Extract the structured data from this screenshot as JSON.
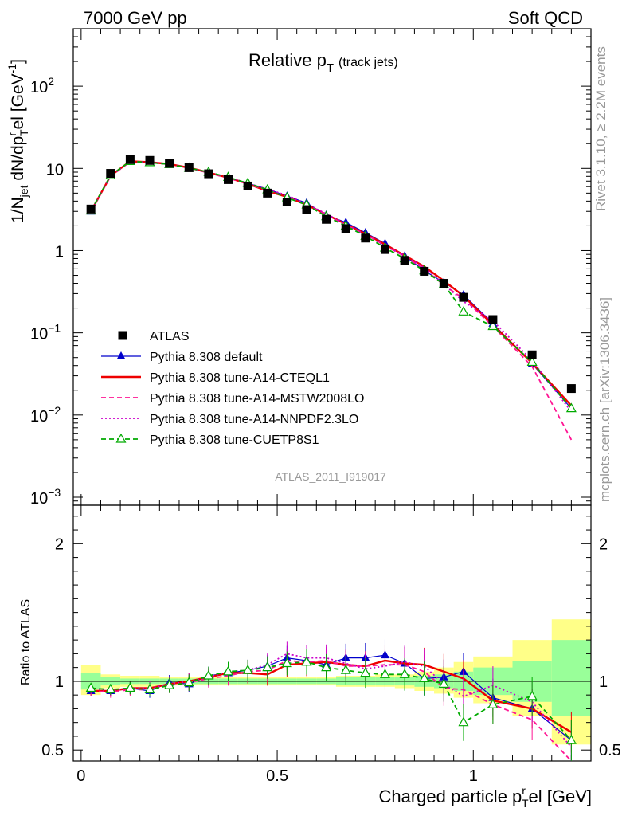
{
  "header": {
    "left": "7000 GeV pp",
    "right": "Soft QCD"
  },
  "side_text": {
    "rivet": "Rivet 3.1.10, ≥ 2.2M events",
    "mcplots": "mcplots.cern.ch [arXiv:1306.3436]"
  },
  "analysis_id": "ATLAS_2011_I919017",
  "chart_data": [
    {
      "panel": "main",
      "type": "line",
      "title": "Relative p_T (track jets)",
      "title_parts": {
        "main": "Relative p",
        "sub": "T",
        "suffix": "(track jets)"
      },
      "ylabel_parts": {
        "a": "1/N",
        "a_sub": "jet",
        "b": " dN/dp",
        "b_sup": "r",
        "b_sub": "T",
        "c": "el [GeV",
        "c_sup": "-1",
        "d": "]"
      },
      "yscale": "log",
      "ylim": [
        0.0008,
        500
      ],
      "xlim": [
        -0.02,
        1.3
      ],
      "y_tick_labels": [
        {
          "value": 0.001,
          "base": "10",
          "exp": "−3"
        },
        {
          "value": 0.01,
          "base": "10",
          "exp": "−2"
        },
        {
          "value": 0.1,
          "base": "10",
          "exp": "−1"
        },
        {
          "value": 1,
          "base": "1",
          "exp": ""
        },
        {
          "value": 10,
          "base": "10",
          "exp": ""
        },
        {
          "value": 100,
          "base": "10",
          "exp": "2"
        }
      ],
      "legend_position": "lower-left",
      "x": [
        0.025,
        0.075,
        0.125,
        0.175,
        0.225,
        0.275,
        0.325,
        0.375,
        0.425,
        0.475,
        0.525,
        0.575,
        0.625,
        0.675,
        0.725,
        0.775,
        0.825,
        0.875,
        0.925,
        0.975,
        1.05,
        1.15,
        1.25
      ],
      "series": [
        {
          "name": "ATLAS",
          "color": "#000000",
          "style": "square",
          "values": [
            3.2,
            8.7,
            12.8,
            12.5,
            11.5,
            10.2,
            8.6,
            7.3,
            6.1,
            5.0,
            3.9,
            3.15,
            2.4,
            1.85,
            1.42,
            1.03,
            0.76,
            0.56,
            0.4,
            0.27,
            0.145,
            0.054,
            0.021
          ]
        },
        {
          "name": "Pythia 8.308 default",
          "color": "#0000cc",
          "style": "solid-triangle",
          "values": [
            3.0,
            8.1,
            12.1,
            11.8,
            11.4,
            10.0,
            9.0,
            7.8,
            6.6,
            5.6,
            4.6,
            3.8,
            2.7,
            2.2,
            1.65,
            1.22,
            0.86,
            0.57,
            0.41,
            0.29,
            0.13,
            0.042,
            0.012
          ]
        },
        {
          "name": "Pythia 8.308 tune-A14-CTEQL1",
          "color": "#ee0000",
          "style": "solid-thick",
          "values": [
            3.0,
            8.1,
            12.2,
            11.9,
            11.3,
            10.2,
            8.9,
            7.7,
            6.5,
            5.3,
            4.5,
            3.6,
            2.75,
            2.1,
            1.6,
            1.19,
            0.87,
            0.64,
            0.43,
            0.28,
            0.125,
            0.043,
            0.013
          ]
        },
        {
          "name": "Pythia 8.308 tune-A14-MSTW2008LO",
          "color": "#ff1493",
          "style": "dashed",
          "values": [
            3.0,
            8.0,
            12.0,
            11.8,
            11.2,
            10.1,
            8.8,
            7.6,
            6.5,
            5.4,
            4.5,
            3.6,
            2.75,
            2.05,
            1.58,
            1.15,
            0.85,
            0.6,
            0.38,
            0.26,
            0.12,
            0.039,
            0.005
          ]
        },
        {
          "name": "Pythia 8.308 tune-A14-NNPDF2.3LO",
          "color": "#cc00cc",
          "style": "dotted",
          "values": [
            3.0,
            8.1,
            12.1,
            11.9,
            11.3,
            10.1,
            8.9,
            7.8,
            6.6,
            5.6,
            4.7,
            3.7,
            2.8,
            2.1,
            1.55,
            1.14,
            0.87,
            0.62,
            0.39,
            0.24,
            0.14,
            0.046,
            0.011
          ]
        },
        {
          "name": "Pythia 8.308 tune-CUETP8S1",
          "color": "#00aa00",
          "style": "dashed-open-triangle",
          "values": [
            3.05,
            8.2,
            12.2,
            11.8,
            11.2,
            10.1,
            9.0,
            7.8,
            6.6,
            5.5,
            4.4,
            3.6,
            2.6,
            2.0,
            1.5,
            1.08,
            0.8,
            0.57,
            0.39,
            0.18,
            0.12,
            0.044,
            0.012
          ]
        }
      ]
    },
    {
      "panel": "ratio",
      "type": "line",
      "ylabel": "Ratio to ATLAS",
      "xlabel_parts": {
        "a": "Charged particle p",
        "a_sup": "r",
        "a_sub": "T",
        "b": "el [GeV]"
      },
      "ylim": [
        0.42,
        2.28
      ],
      "xlim": [
        -0.02,
        1.3
      ],
      "y_tick_labels": [
        "0.5",
        "1",
        "2"
      ],
      "y_ticks": [
        0.5,
        1,
        2
      ],
      "x_tick_labels": [
        "0",
        "0.5",
        "1"
      ],
      "x_ticks": [
        0,
        0.5,
        1
      ],
      "band_edges": [
        0,
        0.05,
        0.1,
        0.15,
        0.2,
        0.25,
        0.3,
        0.35,
        0.4,
        0.45,
        0.5,
        0.55,
        0.6,
        0.65,
        0.7,
        0.75,
        0.8,
        0.85,
        0.9,
        0.95,
        1.0,
        1.1,
        1.2,
        1.3
      ],
      "band_inner": [
        [
          0.94,
          1.06
        ],
        [
          0.97,
          1.03
        ],
        [
          0.98,
          1.02
        ],
        [
          0.98,
          1.02
        ],
        [
          0.98,
          1.02
        ],
        [
          0.98,
          1.02
        ],
        [
          0.98,
          1.02
        ],
        [
          0.98,
          1.02
        ],
        [
          0.98,
          1.02
        ],
        [
          0.98,
          1.02
        ],
        [
          0.98,
          1.02
        ],
        [
          0.98,
          1.02
        ],
        [
          0.98,
          1.02
        ],
        [
          0.97,
          1.03
        ],
        [
          0.97,
          1.03
        ],
        [
          0.97,
          1.03
        ],
        [
          0.97,
          1.03
        ],
        [
          0.96,
          1.04
        ],
        [
          0.95,
          1.05
        ],
        [
          0.93,
          1.07
        ],
        [
          0.9,
          1.1
        ],
        [
          0.85,
          1.15
        ],
        [
          0.75,
          1.3
        ]
      ],
      "band_outer": [
        [
          0.9,
          1.12
        ],
        [
          0.95,
          1.05
        ],
        [
          0.96,
          1.04
        ],
        [
          0.96,
          1.04
        ],
        [
          0.97,
          1.03
        ],
        [
          0.97,
          1.03
        ],
        [
          0.97,
          1.03
        ],
        [
          0.97,
          1.03
        ],
        [
          0.97,
          1.03
        ],
        [
          0.97,
          1.03
        ],
        [
          0.97,
          1.03
        ],
        [
          0.97,
          1.03
        ],
        [
          0.97,
          1.03
        ],
        [
          0.96,
          1.04
        ],
        [
          0.96,
          1.04
        ],
        [
          0.96,
          1.05
        ],
        [
          0.95,
          1.05
        ],
        [
          0.93,
          1.07
        ],
        [
          0.91,
          1.1
        ],
        [
          0.88,
          1.14
        ],
        [
          0.84,
          1.18
        ],
        [
          0.75,
          1.3
        ],
        [
          0.54,
          1.45
        ]
      ],
      "band_colors": {
        "inner": "#99ff99",
        "outer": "#ffff88"
      },
      "x": [
        0.025,
        0.075,
        0.125,
        0.175,
        0.225,
        0.275,
        0.325,
        0.375,
        0.425,
        0.475,
        0.525,
        0.575,
        0.625,
        0.675,
        0.725,
        0.775,
        0.825,
        0.875,
        0.925,
        0.975,
        1.05,
        1.15,
        1.25
      ],
      "series": [
        {
          "name": "Pythia 8.308 default",
          "color": "#0000cc",
          "style": "solid-triangle",
          "values": [
            0.93,
            0.93,
            0.95,
            0.93,
            0.99,
            0.98,
            1.04,
            1.06,
            1.08,
            1.11,
            1.17,
            1.15,
            1.12,
            1.17,
            1.17,
            1.19,
            1.13,
            1.02,
            1.03,
            1.07,
            0.88,
            0.8,
            0.57
          ]
        },
        {
          "name": "Pythia 8.308 tune-A14-CTEQL1",
          "color": "#ee0000",
          "style": "solid-thick",
          "values": [
            0.93,
            0.93,
            0.95,
            0.95,
            0.98,
            1.0,
            1.03,
            1.06,
            1.06,
            1.05,
            1.12,
            1.13,
            1.14,
            1.12,
            1.11,
            1.15,
            1.13,
            1.12,
            1.07,
            1.02,
            0.86,
            0.8,
            0.63
          ]
        },
        {
          "name": "Pythia 8.308 tune-A14-MSTW2008LO",
          "color": "#ff1493",
          "style": "dashed",
          "values": [
            0.93,
            0.92,
            0.94,
            0.94,
            0.97,
            0.99,
            1.02,
            1.04,
            1.07,
            1.08,
            1.15,
            1.14,
            1.15,
            1.11,
            1.11,
            1.12,
            1.12,
            1.07,
            0.95,
            0.94,
            0.83,
            0.72,
            0.35
          ]
        },
        {
          "name": "Pythia 8.308 tune-A14-NNPDF2.3LO",
          "color": "#cc00cc",
          "style": "dotted",
          "values": [
            0.95,
            0.93,
            0.95,
            0.95,
            0.98,
            1.0,
            1.03,
            1.07,
            1.08,
            1.12,
            1.2,
            1.17,
            1.17,
            1.13,
            1.09,
            1.11,
            1.14,
            1.11,
            0.98,
            0.89,
            0.97,
            0.85,
            0.52
          ]
        },
        {
          "name": "Pythia 8.308 tune-CUETP8S1",
          "color": "#00aa00",
          "style": "dashed-open-triangle",
          "values": [
            0.95,
            0.94,
            0.95,
            0.94,
            0.97,
            0.99,
            1.04,
            1.07,
            1.08,
            1.1,
            1.13,
            1.14,
            1.1,
            1.08,
            1.06,
            1.05,
            1.05,
            1.02,
            0.98,
            0.7,
            0.83,
            0.89,
            0.57
          ]
        }
      ]
    }
  ]
}
